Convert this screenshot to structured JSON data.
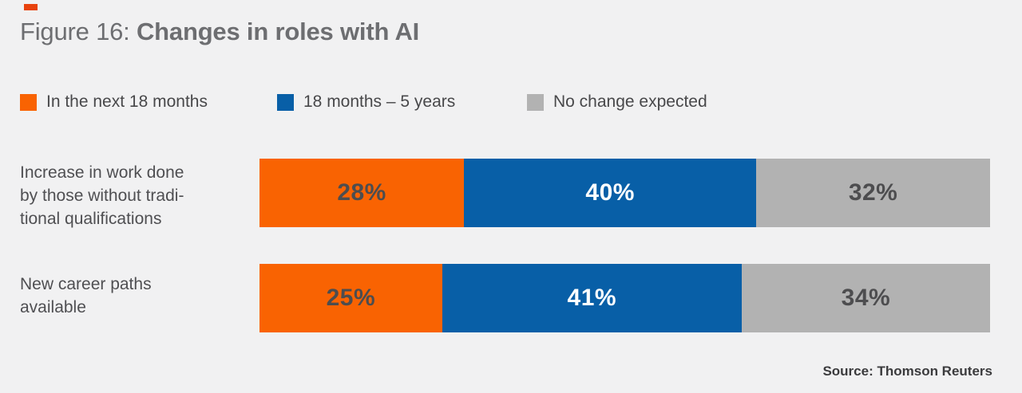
{
  "page": {
    "background_color": "#f1f1f2",
    "figure_tag_color": "#e8430e"
  },
  "title": {
    "prefix": "Figure 16: ",
    "bold": "Changes in roles with AI",
    "color": "#6d6e71"
  },
  "chart_data": {
    "type": "bar",
    "stacked": true,
    "orientation": "horizontal",
    "title": "Figure 16: Changes in roles with AI",
    "xlim": [
      0,
      100
    ],
    "value_suffix": "%",
    "grid": false,
    "legend_position": "top",
    "categories": [
      "Increase in work done\nby those without tradi-\ntional qualifications",
      "New career paths\navailable"
    ],
    "series": [
      {
        "name": "In the next 18 months",
        "color": "#f96302",
        "label_color": "#4d4d4f",
        "values": [
          28,
          25
        ]
      },
      {
        "name": "18 months – 5 years",
        "color": "#085fa7",
        "label_color": "#ffffff",
        "values": [
          40,
          41
        ]
      },
      {
        "name": "No change expected",
        "color": "#b2b2b2",
        "label_color": "#4d4d4f",
        "values": [
          32,
          34
        ]
      }
    ]
  },
  "source": {
    "text": "Source: Thomson Reuters"
  }
}
